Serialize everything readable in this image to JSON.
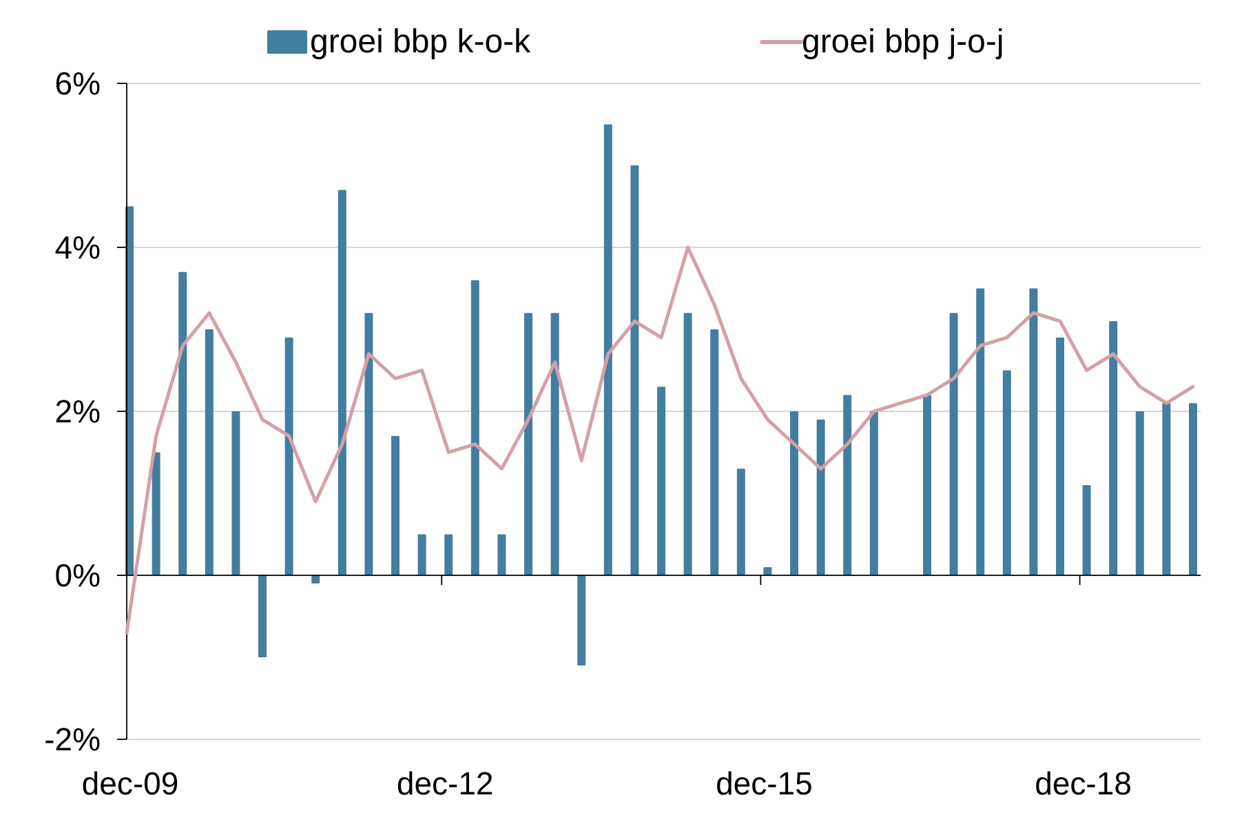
{
  "chart_data": {
    "type": "bar",
    "title": "",
    "xlabel": "",
    "ylabel": "",
    "ylim": [
      -2,
      6
    ],
    "y_ticks": [
      "-2%",
      "0%",
      "2%",
      "4%",
      "6%"
    ],
    "y_tick_values": [
      -2,
      0,
      2,
      4,
      6
    ],
    "x_tick_labels": [
      "dec-09",
      "dec-12",
      "dec-15",
      "dec-18"
    ],
    "x_tick_positions": [
      "dec-09",
      "dec-12",
      "dec-15",
      "dec-18"
    ],
    "grid": true,
    "legend_position": "top",
    "categories": [
      "dec-09",
      "mrt-10",
      "jun-10",
      "sep-10",
      "dec-10",
      "mrt-11",
      "jun-11",
      "sep-11",
      "dec-11",
      "mrt-12",
      "jun-12",
      "sep-12",
      "dec-12",
      "mrt-13",
      "jun-13",
      "sep-13",
      "dec-13",
      "mrt-14",
      "jun-14",
      "sep-14",
      "dec-14",
      "mrt-15",
      "jun-15",
      "sep-15",
      "dec-15",
      "mrt-16",
      "jun-16",
      "sep-16",
      "dec-16",
      "mrt-17",
      "jun-17",
      "sep-17",
      "dec-17",
      "mrt-18",
      "jun-18",
      "sep-18",
      "dec-18",
      "mrt-19",
      "jun-19",
      "sep-19",
      "dec-19"
    ],
    "series": [
      {
        "name": "groei bbp k-o-k",
        "type": "bar",
        "color": "#427ea0",
        "values": [
          4.5,
          1.5,
          3.7,
          3.0,
          2.0,
          -1.0,
          2.9,
          -0.1,
          4.7,
          3.2,
          1.7,
          0.5,
          0.5,
          3.6,
          0.5,
          3.2,
          3.2,
          -1.1,
          5.5,
          5.0,
          2.3,
          3.2,
          3.0,
          1.3,
          0.1,
          2.0,
          1.9,
          2.2,
          2.0,
          null,
          2.2,
          3.2,
          3.5,
          2.5,
          3.5,
          2.9,
          1.1,
          3.1,
          2.0,
          2.1,
          2.1
        ]
      },
      {
        "name": "groei bbp j-o-j",
        "type": "line",
        "color": "#d4a0a6",
        "values": [
          -0.7,
          1.7,
          2.8,
          3.2,
          2.6,
          1.9,
          1.7,
          0.9,
          1.6,
          2.7,
          2.4,
          2.5,
          1.5,
          1.6,
          1.3,
          1.9,
          2.6,
          1.4,
          2.7,
          3.1,
          2.9,
          4.0,
          3.3,
          2.4,
          1.9,
          1.6,
          1.3,
          1.6,
          2.0,
          2.1,
          2.2,
          2.4,
          2.8,
          2.9,
          3.2,
          3.1,
          2.5,
          2.7,
          2.3,
          2.1,
          2.3
        ]
      }
    ]
  }
}
